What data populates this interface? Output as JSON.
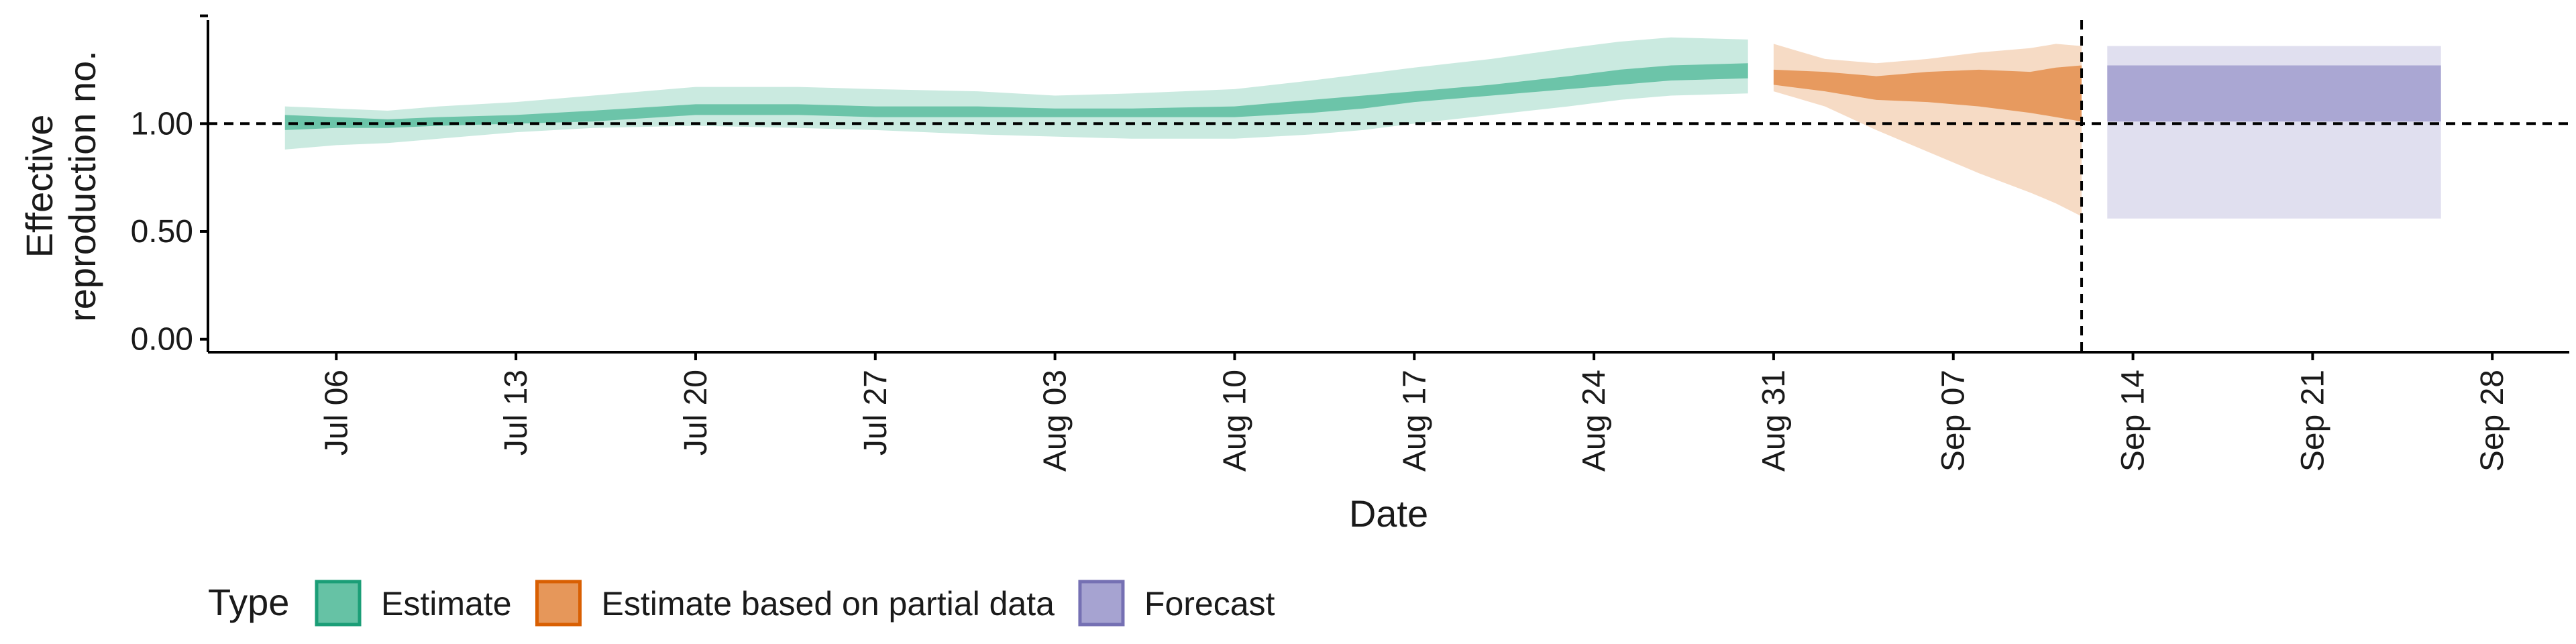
{
  "chart_data": {
    "type": "area",
    "xlabel": "Date",
    "ylabel": "Effective\nreproduction no.",
    "x_axis": {
      "type": "date",
      "range": [
        "2020-07-01",
        "2020-10-01"
      ],
      "ticks": [
        "2020-07-06",
        "2020-07-13",
        "2020-07-20",
        "2020-07-27",
        "2020-08-03",
        "2020-08-10",
        "2020-08-17",
        "2020-08-24",
        "2020-08-31",
        "2020-09-07",
        "2020-09-14",
        "2020-09-21",
        "2020-09-28"
      ],
      "tick_labels": [
        "Jul 06",
        "Jul 13",
        "Jul 20",
        "Jul 27",
        "Aug 03",
        "Aug 10",
        "Aug 17",
        "Aug 24",
        "Aug 31",
        "Sep 07",
        "Sep 14",
        "Sep 21",
        "Sep 28"
      ]
    },
    "y_axis": {
      "range": [
        -0.06,
        1.48
      ],
      "ticks": [
        0,
        0.5,
        1,
        1.5
      ],
      "tick_labels": [
        "0.00",
        "0.50",
        "1.00",
        ""
      ]
    },
    "reference_line_y": 1.0,
    "reference_line_date": "2020-09-12",
    "legend": {
      "title": "Type",
      "position": "bottom-left"
    },
    "series": [
      {
        "name": "Estimate",
        "fill_color": "#66c2a5",
        "stroke_color": "#1b9e77",
        "dates": [
          "2020-07-04",
          "2020-07-06",
          "2020-07-08",
          "2020-07-10",
          "2020-07-13",
          "2020-07-16",
          "2020-07-20",
          "2020-07-24",
          "2020-07-27",
          "2020-07-31",
          "2020-08-03",
          "2020-08-06",
          "2020-08-10",
          "2020-08-13",
          "2020-08-15",
          "2020-08-17",
          "2020-08-20",
          "2020-08-23",
          "2020-08-25",
          "2020-08-27",
          "2020-08-30"
        ],
        "outer_lower": [
          0.88,
          0.9,
          0.91,
          0.93,
          0.96,
          0.98,
          0.99,
          0.98,
          0.97,
          0.95,
          0.94,
          0.93,
          0.93,
          0.95,
          0.97,
          1.0,
          1.04,
          1.08,
          1.11,
          1.13,
          1.14
        ],
        "inner_lower": [
          0.97,
          0.98,
          0.98,
          0.99,
          1.0,
          1.01,
          1.04,
          1.04,
          1.03,
          1.03,
          1.03,
          1.03,
          1.03,
          1.05,
          1.07,
          1.1,
          1.13,
          1.16,
          1.18,
          1.2,
          1.21
        ],
        "inner_upper": [
          1.04,
          1.03,
          1.02,
          1.03,
          1.04,
          1.06,
          1.09,
          1.09,
          1.08,
          1.08,
          1.07,
          1.07,
          1.08,
          1.11,
          1.13,
          1.15,
          1.18,
          1.22,
          1.25,
          1.27,
          1.28
        ],
        "outer_upper": [
          1.08,
          1.07,
          1.06,
          1.08,
          1.1,
          1.13,
          1.17,
          1.17,
          1.16,
          1.15,
          1.13,
          1.14,
          1.16,
          1.2,
          1.23,
          1.26,
          1.3,
          1.35,
          1.38,
          1.4,
          1.39
        ]
      },
      {
        "name": "Estimate based on partial data",
        "fill_color": "#e6975a",
        "stroke_color": "#d95f02",
        "dates": [
          "2020-08-31",
          "2020-09-02",
          "2020-09-04",
          "2020-09-06",
          "2020-09-08",
          "2020-09-10",
          "2020-09-11",
          "2020-09-12"
        ],
        "outer_lower": [
          1.15,
          1.08,
          0.97,
          0.87,
          0.77,
          0.68,
          0.63,
          0.57
        ],
        "inner_lower": [
          1.18,
          1.15,
          1.11,
          1.1,
          1.08,
          1.05,
          1.03,
          1.01
        ],
        "inner_upper": [
          1.25,
          1.24,
          1.22,
          1.24,
          1.25,
          1.24,
          1.26,
          1.27
        ],
        "outer_upper": [
          1.37,
          1.3,
          1.28,
          1.3,
          1.33,
          1.35,
          1.37,
          1.36
        ]
      },
      {
        "name": "Forecast",
        "fill_color": "#a6a3d1",
        "stroke_color": "#7570b3",
        "dates": [
          "2020-09-13",
          "2020-09-26"
        ],
        "outer_lower": [
          0.56,
          0.56
        ],
        "inner_lower": [
          1.01,
          1.01
        ],
        "inner_upper": [
          1.27,
          1.27
        ],
        "outer_upper": [
          1.36,
          1.36
        ]
      }
    ]
  }
}
